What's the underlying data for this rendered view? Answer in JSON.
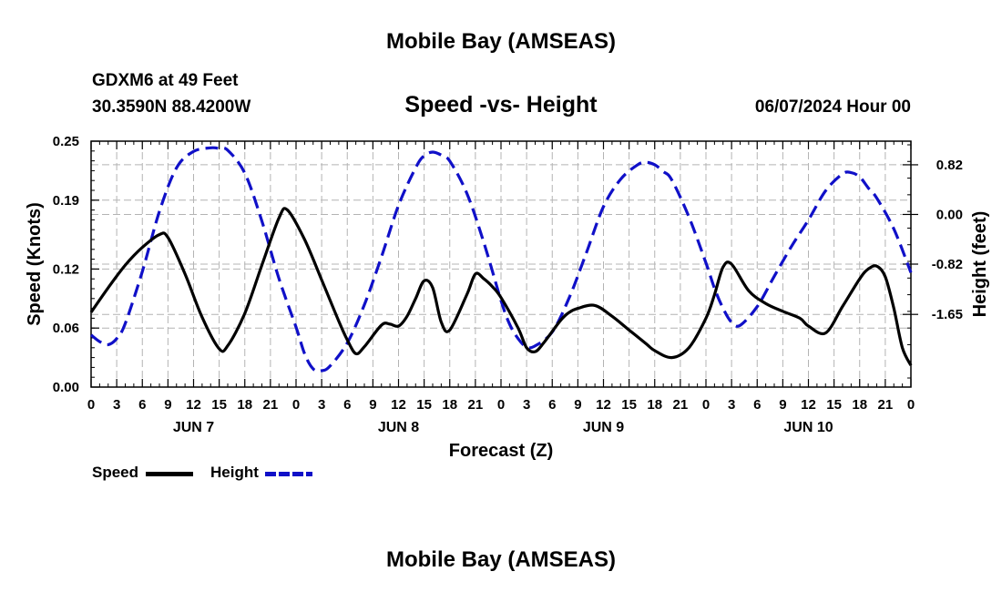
{
  "page": {
    "title_top": "Mobile Bay (AMSEAS)",
    "title_bottom": "Mobile Bay (AMSEAS)",
    "station": "GDXM6 at 49 Feet",
    "coords": "30.3590N  88.4200W",
    "run_time": "06/07/2024 Hour 00"
  },
  "colors": {
    "speed": "#000000",
    "height": "#1010c8",
    "grid": "#b4b4b4"
  },
  "chart_data": {
    "type": "line",
    "title": "Speed -vs- Height",
    "xlabel": "Forecast (Z)",
    "ylabel": "Speed (Knots)",
    "y2label": "Height (feet)",
    "xlim": [
      0,
      96
    ],
    "ylim": [
      0,
      0.25
    ],
    "y2lim": [
      -2.85,
      1.21
    ],
    "yticks": [
      0.0,
      0.06,
      0.12,
      0.19,
      0.25
    ],
    "ytick_labels": [
      "0.00",
      "0.06",
      "0.12",
      "0.19",
      "0.25"
    ],
    "y2ticks": [
      0.82,
      0.0,
      -0.82,
      -1.65
    ],
    "y2tick_labels": [
      "0.82",
      "0.00",
      "-0.82",
      "-1.65"
    ],
    "xtick_labels": [
      "0",
      "3",
      "6",
      "9",
      "12",
      "15",
      "18",
      "21",
      "0",
      "3",
      "6",
      "9",
      "12",
      "15",
      "18",
      "21",
      "0",
      "3",
      "6",
      "9",
      "12",
      "15",
      "18",
      "21",
      "0",
      "3",
      "6",
      "9",
      "12",
      "15",
      "18",
      "21",
      "0"
    ],
    "day_labels": [
      {
        "hour": 12,
        "label": "JUN 7"
      },
      {
        "hour": 36,
        "label": "JUN 8"
      },
      {
        "hour": 60,
        "label": "JUN 9"
      },
      {
        "hour": 84,
        "label": "JUN 10"
      }
    ],
    "legend": [
      {
        "name": "Speed",
        "series": "speed"
      },
      {
        "name": "Height",
        "series": "height"
      }
    ],
    "series": [
      {
        "name": "Speed",
        "key": "speed",
        "axis": "left",
        "style": "solid",
        "x": [
          0,
          2,
          4,
          6,
          8,
          9,
          11,
          13,
          15,
          16,
          18,
          20,
          22,
          23,
          25,
          27,
          29,
          30,
          31,
          32,
          34,
          35,
          36,
          37,
          38,
          39,
          40,
          41,
          42,
          44,
          45,
          46,
          47,
          48,
          50,
          51,
          52,
          53,
          55,
          56,
          57,
          59,
          61,
          63,
          65,
          66,
          68,
          70,
          72,
          73,
          74,
          75,
          77,
          79,
          81,
          83,
          84,
          86,
          88,
          90,
          91,
          92,
          93,
          94,
          95,
          96
        ],
        "y": [
          0.076,
          0.101,
          0.124,
          0.142,
          0.155,
          0.152,
          0.115,
          0.071,
          0.039,
          0.042,
          0.075,
          0.124,
          0.172,
          0.18,
          0.15,
          0.109,
          0.067,
          0.048,
          0.034,
          0.041,
          0.063,
          0.064,
          0.062,
          0.072,
          0.09,
          0.108,
          0.101,
          0.066,
          0.058,
          0.094,
          0.115,
          0.11,
          0.102,
          0.091,
          0.06,
          0.04,
          0.036,
          0.045,
          0.068,
          0.076,
          0.08,
          0.083,
          0.072,
          0.058,
          0.044,
          0.037,
          0.03,
          0.04,
          0.07,
          0.094,
          0.122,
          0.125,
          0.098,
          0.085,
          0.077,
          0.07,
          0.062,
          0.055,
          0.082,
          0.11,
          0.12,
          0.123,
          0.112,
          0.08,
          0.04,
          0.022
        ]
      },
      {
        "name": "Height",
        "key": "height",
        "axis": "right",
        "style": "dashed",
        "x": [
          0,
          1,
          2,
          3,
          4,
          6,
          8,
          10,
          12,
          14,
          15,
          16,
          18,
          20,
          22,
          24,
          25,
          26,
          27,
          28,
          30,
          32,
          34,
          36,
          38,
          39,
          40,
          41,
          42,
          44,
          46,
          48,
          49,
          50,
          51,
          52,
          54,
          56,
          58,
          60,
          62,
          64,
          65,
          66,
          67,
          68,
          70,
          72,
          73,
          74,
          75,
          76,
          78,
          80,
          82,
          84,
          86,
          88,
          89,
          90,
          91,
          92,
          94,
          96
        ],
        "y": [
          -1.99,
          -2.1,
          -2.15,
          -2.05,
          -1.8,
          -0.94,
          0.05,
          0.77,
          1.04,
          1.1,
          1.09,
          1.06,
          0.68,
          -0.11,
          -1.06,
          -1.86,
          -2.3,
          -2.55,
          -2.58,
          -2.5,
          -2.12,
          -1.49,
          -0.7,
          0.15,
          0.77,
          0.97,
          1.03,
          0.98,
          0.88,
          0.35,
          -0.47,
          -1.42,
          -1.81,
          -2.05,
          -2.19,
          -2.17,
          -1.94,
          -1.37,
          -0.63,
          0.13,
          0.58,
          0.82,
          0.86,
          0.82,
          0.71,
          0.57,
          -0.04,
          -0.8,
          -1.22,
          -1.55,
          -1.78,
          -1.83,
          -1.52,
          -1.02,
          -0.53,
          -0.09,
          0.39,
          0.67,
          0.69,
          0.62,
          0.44,
          0.27,
          -0.24,
          -0.96
        ]
      }
    ]
  }
}
